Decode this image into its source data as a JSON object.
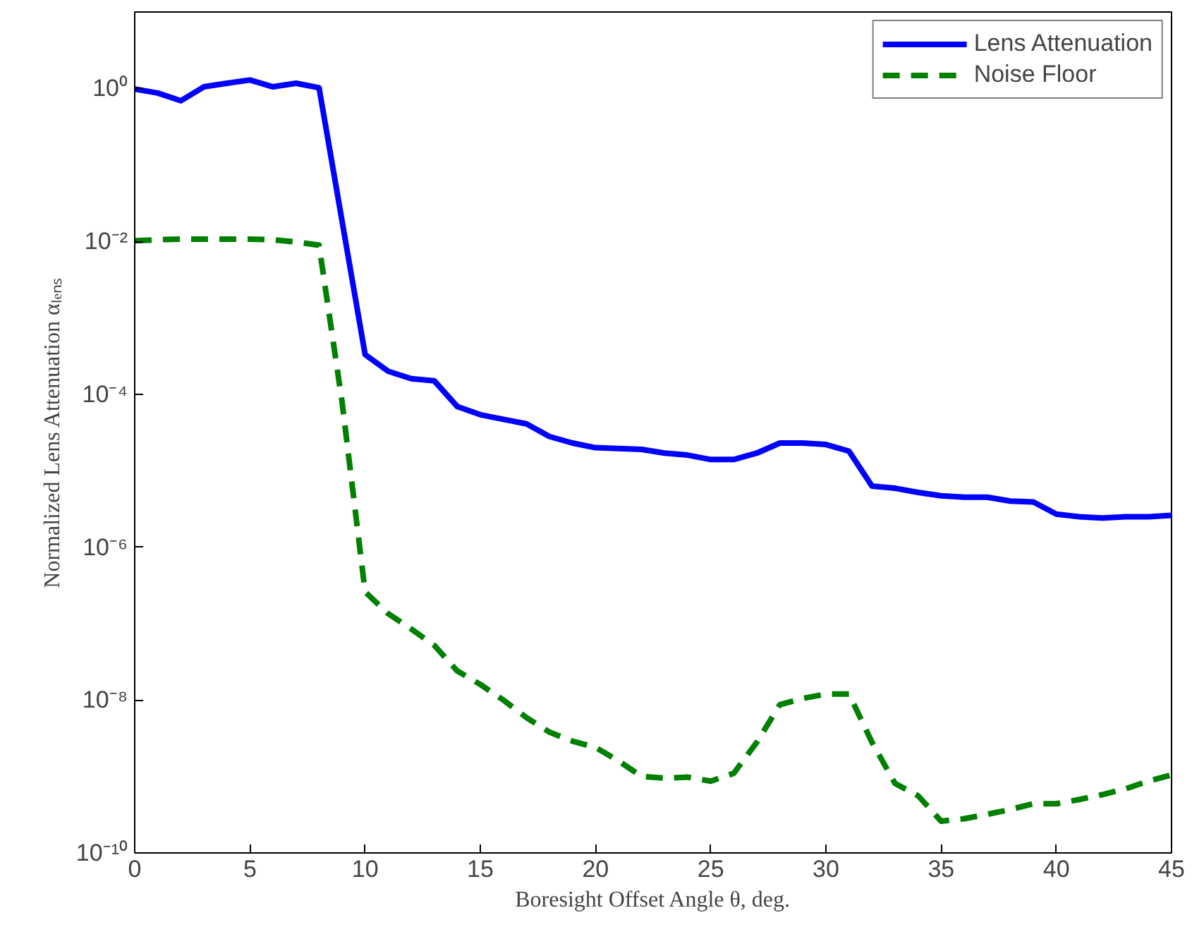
{
  "chart_data": {
    "type": "line",
    "xlabel": "Boresight Offset Angle θ, deg.",
    "ylabel": "Normalized Lens Attenuation αₗₑₙₛ",
    "xlim": [
      0,
      45
    ],
    "xticks": [
      0,
      5,
      10,
      15,
      20,
      25,
      30,
      35,
      40,
      45
    ],
    "ylim": [
      1e-10,
      10
    ],
    "yticks": [
      {
        "value": 1e-10,
        "label": "10⁻¹⁰"
      },
      {
        "value": 1e-08,
        "label": "10⁻⁸"
      },
      {
        "value": 1e-06,
        "label": "10⁻⁶"
      },
      {
        "value": 0.0001,
        "label": "10⁻⁴"
      },
      {
        "value": 0.01,
        "label": "10⁻²"
      },
      {
        "value": 1,
        "label": "10⁰"
      }
    ],
    "log": "y",
    "grid": false,
    "legend": "top right",
    "series": [
      {
        "name": "Lens Attenuation",
        "color": "#0000ff",
        "line_style": "solid",
        "x": [
          0,
          1,
          2,
          3,
          4,
          5,
          6,
          7,
          8,
          10,
          11,
          12,
          13,
          14,
          15,
          16,
          17,
          18,
          19,
          20,
          21,
          22,
          23,
          24,
          25,
          26,
          27,
          28,
          29,
          30,
          31,
          32,
          33,
          34,
          35,
          36,
          37,
          38,
          39,
          40,
          41,
          42,
          43,
          44,
          45
        ],
        "values": [
          0.98,
          0.87,
          0.69,
          1.05,
          1.17,
          1.29,
          1.05,
          1.17,
          1.02,
          0.00033,
          0.0002,
          0.00016,
          0.00015,
          6.9e-05,
          5.4e-05,
          4.7e-05,
          4.1e-05,
          2.8e-05,
          2.3e-05,
          2e-05,
          1.95e-05,
          1.9e-05,
          1.7e-05,
          1.6e-05,
          1.4e-05,
          1.4e-05,
          1.7e-05,
          2.3e-05,
          2.3e-05,
          2.2e-05,
          1.8e-05,
          6.3e-06,
          5.9e-06,
          5.2e-06,
          4.7e-06,
          4.5e-06,
          4.5e-06,
          4e-06,
          3.9e-06,
          2.7e-06,
          2.5e-06,
          2.4e-06,
          2.5e-06,
          2.5e-06,
          2.6e-06
        ]
      },
      {
        "name": "Noise Floor",
        "color": "#008000",
        "line_style": "dashed",
        "x": [
          0,
          1,
          2,
          3,
          4,
          5,
          6,
          7,
          8,
          9,
          10,
          11,
          12,
          13,
          14,
          15,
          16,
          17,
          18,
          19,
          20,
          21,
          22,
          23,
          24,
          25,
          26,
          27,
          28,
          29,
          30,
          31,
          32,
          33,
          34,
          35,
          36,
          37,
          38,
          39,
          40,
          41,
          42,
          43,
          44,
          45
        ],
        "values": [
          0.0102,
          0.0105,
          0.0107,
          0.0107,
          0.0107,
          0.0107,
          0.0105,
          0.0098,
          0.0089,
          7.9e-05,
          2.6e-07,
          1.35e-07,
          8.5e-08,
          5.2e-08,
          2.4e-08,
          1.6e-08,
          1e-08,
          5.9e-09,
          3.8e-09,
          2.9e-09,
          2.4e-09,
          1.6e-09,
          1e-09,
          9.5e-10,
          9.8e-10,
          8.7e-10,
          1.1e-09,
          2.8e-09,
          8.7e-09,
          1.05e-08,
          1.2e-08,
          1.2e-08,
          2.8e-09,
          8.1e-10,
          5.6e-10,
          2.6e-10,
          2.8e-10,
          3.2e-10,
          3.7e-10,
          4.4e-10,
          4.4e-10,
          5e-10,
          5.8e-10,
          6.9e-10,
          8.7e-10,
          1.05e-09
        ]
      }
    ]
  }
}
